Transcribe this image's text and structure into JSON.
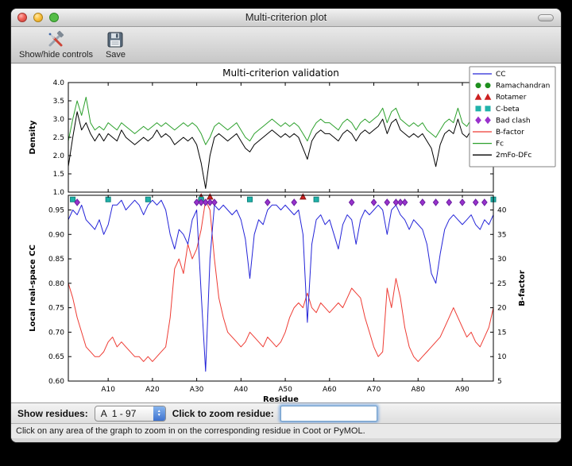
{
  "window": {
    "title": "Multi-criterion plot"
  },
  "toolbar": {
    "items": [
      {
        "label": "Show/hide controls",
        "icon": "tools-icon"
      },
      {
        "label": "Save",
        "icon": "save-icon"
      }
    ]
  },
  "controls": {
    "show_residues_label": "Show residues:",
    "residue_range_value": "A  1 - 97",
    "zoom_label": "Click to zoom residue:",
    "zoom_input_value": ""
  },
  "status_bar": {
    "text": "Click on any area of the graph to zoom in on the corresponding residue in Coot or PyMOL."
  },
  "chart_data": {
    "type": "line",
    "title": "Multi-criterion validation",
    "xlabel": "Residue",
    "x_range": [
      1,
      97
    ],
    "x_ticks": [
      {
        "v": 10,
        "l": "A10"
      },
      {
        "v": 20,
        "l": "A20"
      },
      {
        "v": 30,
        "l": "A30"
      },
      {
        "v": 40,
        "l": "A40"
      },
      {
        "v": 50,
        "l": "A50"
      },
      {
        "v": 60,
        "l": "A60"
      },
      {
        "v": 70,
        "l": "A70"
      },
      {
        "v": 80,
        "l": "A80"
      },
      {
        "v": 90,
        "l": "A90"
      }
    ],
    "legend": {
      "position": "upper right",
      "entries": [
        {
          "label": "CC",
          "type": "line",
          "color": "#2424d8"
        },
        {
          "label": "Ramachandran",
          "type": "circle",
          "color": "#1e8f1e"
        },
        {
          "label": "Rotamer",
          "type": "triangle",
          "color": "#cc2020"
        },
        {
          "label": "C-beta",
          "type": "square",
          "color": "#20b2aa"
        },
        {
          "label": "Bad clash",
          "type": "diamond",
          "color": "#9932cc"
        },
        {
          "label": "B-factor",
          "type": "line",
          "color": "#ee3b33"
        },
        {
          "label": "Fc",
          "type": "line",
          "color": "#2ca02c"
        },
        {
          "label": "2mFo-DFc",
          "type": "line",
          "color": "#000000"
        }
      ]
    },
    "subplots": [
      {
        "name": "density",
        "ylabel": "Density",
        "ylim": [
          1.0,
          4.0
        ],
        "yticks": [
          {
            "v": 1.0,
            "l": "1.0"
          },
          {
            "v": 1.5,
            "l": "1.5"
          },
          {
            "v": 2.0,
            "l": "2.0"
          },
          {
            "v": 2.5,
            "l": "2.5"
          },
          {
            "v": 3.0,
            "l": "3.0"
          },
          {
            "v": 3.5,
            "l": "3.5"
          },
          {
            "v": 4.0,
            "l": "4.0"
          }
        ],
        "series": [
          {
            "name": "Fc",
            "color": "#2ca02c",
            "values": [
              2.4,
              3.0,
              3.5,
              3.1,
              3.6,
              2.9,
              2.7,
              2.8,
              2.7,
              2.9,
              2.8,
              2.7,
              2.9,
              2.8,
              2.7,
              2.6,
              2.7,
              2.8,
              2.7,
              2.8,
              2.9,
              2.8,
              2.9,
              2.8,
              2.7,
              2.8,
              2.9,
              2.8,
              2.9,
              2.8,
              2.6,
              2.3,
              2.5,
              2.8,
              2.9,
              2.8,
              2.7,
              2.8,
              2.9,
              2.7,
              2.5,
              2.4,
              2.6,
              2.7,
              2.8,
              2.9,
              3.0,
              2.9,
              2.8,
              2.9,
              2.8,
              2.9,
              2.8,
              2.6,
              2.4,
              2.7,
              2.9,
              3.0,
              2.9,
              2.9,
              2.8,
              2.7,
              2.9,
              3.0,
              2.9,
              2.7,
              2.9,
              3.0,
              2.9,
              3.0,
              3.1,
              3.3,
              2.9,
              3.2,
              3.3,
              3.0,
              2.9,
              2.8,
              2.9,
              2.8,
              2.9,
              2.7,
              2.6,
              2.5,
              2.7,
              2.9,
              3.0,
              2.9,
              3.3,
              2.9,
              2.8,
              3.0,
              2.9,
              3.1,
              2.6,
              2.9,
              3.2
            ]
          },
          {
            "name": "2mFo-DFc",
            "color": "#000000",
            "values": [
              1.7,
              2.5,
              3.2,
              2.7,
              2.9,
              2.6,
              2.4,
              2.6,
              2.4,
              2.6,
              2.5,
              2.4,
              2.7,
              2.5,
              2.4,
              2.3,
              2.4,
              2.5,
              2.4,
              2.5,
              2.7,
              2.5,
              2.6,
              2.5,
              2.3,
              2.4,
              2.5,
              2.4,
              2.5,
              2.3,
              1.8,
              1.1,
              2.0,
              2.5,
              2.6,
              2.5,
              2.4,
              2.5,
              2.6,
              2.4,
              2.2,
              2.1,
              2.3,
              2.4,
              2.5,
              2.6,
              2.7,
              2.6,
              2.5,
              2.6,
              2.5,
              2.6,
              2.5,
              2.2,
              1.9,
              2.4,
              2.6,
              2.7,
              2.6,
              2.6,
              2.5,
              2.4,
              2.6,
              2.7,
              2.6,
              2.4,
              2.6,
              2.7,
              2.6,
              2.7,
              2.8,
              3.0,
              2.6,
              2.9,
              3.0,
              2.7,
              2.6,
              2.5,
              2.6,
              2.5,
              2.6,
              2.4,
              2.2,
              1.7,
              2.3,
              2.6,
              2.7,
              2.6,
              3.0,
              2.6,
              2.5,
              2.7,
              2.6,
              2.8,
              2.2,
              2.6,
              2.9
            ]
          }
        ]
      },
      {
        "name": "cc-bfactor",
        "ylabel": "Local real-space CC",
        "ylim": [
          0.6,
          0.98
        ],
        "yticks": [
          {
            "v": 0.6,
            "l": "0.60"
          },
          {
            "v": 0.65,
            "l": "0.65"
          },
          {
            "v": 0.7,
            "l": "0.70"
          },
          {
            "v": 0.75,
            "l": "0.75"
          },
          {
            "v": 0.8,
            "l": "0.80"
          },
          {
            "v": 0.85,
            "l": "0.85"
          },
          {
            "v": 0.9,
            "l": "0.90"
          },
          {
            "v": 0.95,
            "l": "0.95"
          }
        ],
        "y2label": "B-factor",
        "y2lim": [
          5,
          43
        ],
        "y2ticks": [
          {
            "v": 5,
            "l": "5"
          },
          {
            "v": 10,
            "l": "10"
          },
          {
            "v": 15,
            "l": "15"
          },
          {
            "v": 20,
            "l": "20"
          },
          {
            "v": 25,
            "l": "25"
          },
          {
            "v": 30,
            "l": "30"
          },
          {
            "v": 35,
            "l": "35"
          },
          {
            "v": 40,
            "l": "40"
          }
        ],
        "series": [
          {
            "name": "B-factor",
            "axis": "right",
            "color": "#ee3b33",
            "values": [
              25,
              22,
              18,
              15,
              12,
              11,
              10,
              10,
              11,
              13,
              14,
              12,
              13,
              12,
              11,
              10,
              10,
              9,
              10,
              9,
              10,
              11,
              12,
              18,
              28,
              30,
              27,
              33,
              30,
              32,
              36,
              42,
              40,
              30,
              22,
              18,
              15,
              14,
              13,
              12,
              13,
              15,
              14,
              13,
              12,
              14,
              13,
              12,
              13,
              15,
              18,
              20,
              21,
              20,
              23,
              20,
              19,
              21,
              20,
              19,
              20,
              21,
              20,
              22,
              24,
              23,
              22,
              18,
              15,
              12,
              10,
              11,
              24,
              20,
              26,
              22,
              16,
              12,
              10,
              9,
              10,
              11,
              12,
              13,
              14,
              16,
              18,
              20,
              18,
              16,
              14,
              15,
              13,
              12,
              14,
              16,
              20
            ]
          },
          {
            "name": "CC",
            "axis": "left",
            "color": "#2424d8",
            "values": [
              0.93,
              0.95,
              0.94,
              0.96,
              0.93,
              0.92,
              0.91,
              0.93,
              0.9,
              0.92,
              0.96,
              0.96,
              0.97,
              0.95,
              0.96,
              0.97,
              0.96,
              0.94,
              0.96,
              0.97,
              0.96,
              0.97,
              0.95,
              0.9,
              0.87,
              0.91,
              0.9,
              0.88,
              0.93,
              0.95,
              0.78,
              0.62,
              0.85,
              0.96,
              0.95,
              0.96,
              0.95,
              0.94,
              0.95,
              0.93,
              0.89,
              0.81,
              0.9,
              0.93,
              0.92,
              0.95,
              0.96,
              0.96,
              0.95,
              0.96,
              0.95,
              0.94,
              0.95,
              0.9,
              0.72,
              0.88,
              0.93,
              0.94,
              0.92,
              0.93,
              0.9,
              0.87,
              0.92,
              0.94,
              0.93,
              0.88,
              0.93,
              0.95,
              0.94,
              0.95,
              0.96,
              0.95,
              0.9,
              0.95,
              0.96,
              0.94,
              0.93,
              0.91,
              0.93,
              0.92,
              0.91,
              0.88,
              0.82,
              0.8,
              0.86,
              0.91,
              0.93,
              0.94,
              0.93,
              0.92,
              0.93,
              0.94,
              0.92,
              0.91,
              0.93,
              0.92,
              0.94
            ]
          }
        ],
        "markers": [
          {
            "name": "Rotamer",
            "shape": "triangle",
            "color": "#cc2020",
            "edge": "#8a1515",
            "y": 0.977,
            "residues": [
              31,
              33,
              54
            ]
          },
          {
            "name": "C-beta",
            "shape": "square",
            "color": "#20b2aa",
            "edge": "#0e837d",
            "y": 0.9715,
            "residues": [
              2,
              10,
              19,
              31,
              42,
              57,
              97
            ]
          },
          {
            "name": "Bad clash",
            "shape": "diamond",
            "color": "#9932cc",
            "edge": "#6a1fa0",
            "y": 0.9655,
            "residues": [
              3,
              30,
              31,
              32,
              33,
              34,
              46,
              52,
              65,
              70,
              73,
              75,
              76,
              77,
              81,
              84,
              87,
              90,
              93,
              95
            ]
          }
        ]
      }
    ]
  }
}
